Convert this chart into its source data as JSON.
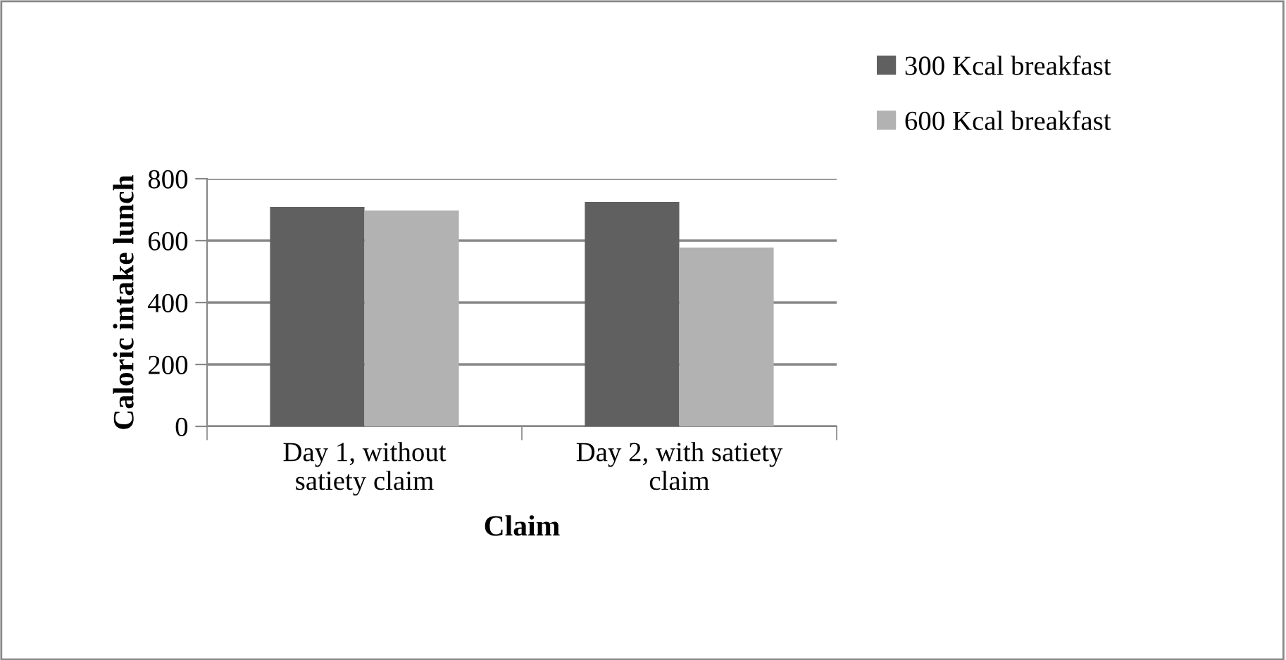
{
  "chart_data": {
    "type": "bar",
    "xlabel": "Claim",
    "ylabel": "Caloric intake lunch",
    "categories": [
      "Day 1, without\nsatiety claim",
      "Day 2, with satiety\nclaim"
    ],
    "series": [
      {
        "name": "300 Kcal breakfast",
        "color": "#606060",
        "values": [
          709,
          725
        ]
      },
      {
        "name": "600 Kcal breakfast",
        "color": "#b2b2b2",
        "values": [
          697,
          578
        ]
      }
    ],
    "ylim": [
      0,
      800
    ],
    "yticks": [
      0,
      200,
      400,
      600,
      800
    ],
    "grid": "y",
    "legend": "top right"
  }
}
